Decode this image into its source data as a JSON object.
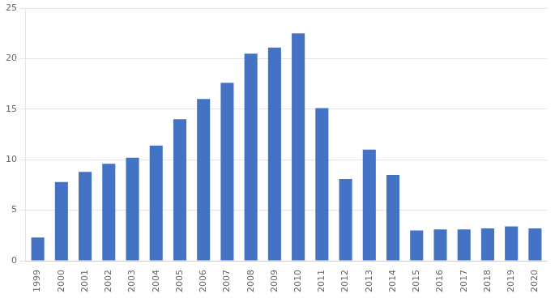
{
  "chart_data": {
    "type": "bar",
    "categories": [
      "1999",
      "2000",
      "2001",
      "2002",
      "2003",
      "2004",
      "2005",
      "2006",
      "2007",
      "2008",
      "2009",
      "2010",
      "2011",
      "2012",
      "2013",
      "2014",
      "2015",
      "2016",
      "2017",
      "2018",
      "2019",
      "2020"
    ],
    "values": [
      2.3,
      7.8,
      8.8,
      9.6,
      10.2,
      11.4,
      14.0,
      16.0,
      17.6,
      20.5,
      21.1,
      22.5,
      15.1,
      8.1,
      11.0,
      8.5,
      3.0,
      3.1,
      3.1,
      3.2,
      3.4,
      3.2
    ],
    "color": "#4472c4",
    "ylim": [
      0,
      25
    ],
    "yticks": [
      0,
      5,
      10,
      15,
      20,
      25
    ],
    "grid": true
  }
}
